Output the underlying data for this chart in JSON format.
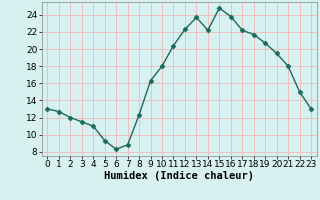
{
  "x": [
    0,
    1,
    2,
    3,
    4,
    5,
    6,
    7,
    8,
    9,
    10,
    11,
    12,
    13,
    14,
    15,
    16,
    17,
    18,
    19,
    20,
    21,
    22,
    23
  ],
  "y": [
    13.0,
    12.7,
    12.0,
    11.5,
    11.0,
    9.3,
    8.3,
    8.8,
    12.3,
    16.3,
    18.0,
    20.4,
    22.3,
    23.7,
    22.2,
    24.8,
    23.8,
    22.2,
    21.7,
    20.7,
    19.5,
    18.0,
    15.0,
    13.0
  ],
  "line_color": "#1a6b5a",
  "marker": "D",
  "marker_size": 2.5,
  "bg_color": "#d7f0f0",
  "grid_color": "#f0b8b8",
  "xlabel": "Humidex (Indice chaleur)",
  "xlim": [
    -0.5,
    23.5
  ],
  "ylim": [
    7.5,
    25.5
  ],
  "yticks": [
    8,
    10,
    12,
    14,
    16,
    18,
    20,
    22,
    24
  ],
  "xticks": [
    0,
    1,
    2,
    3,
    4,
    5,
    6,
    7,
    8,
    9,
    10,
    11,
    12,
    13,
    14,
    15,
    16,
    17,
    18,
    19,
    20,
    21,
    22,
    23
  ],
  "xlabel_fontsize": 7.5,
  "tick_fontsize": 6.5,
  "line_width": 1.0
}
